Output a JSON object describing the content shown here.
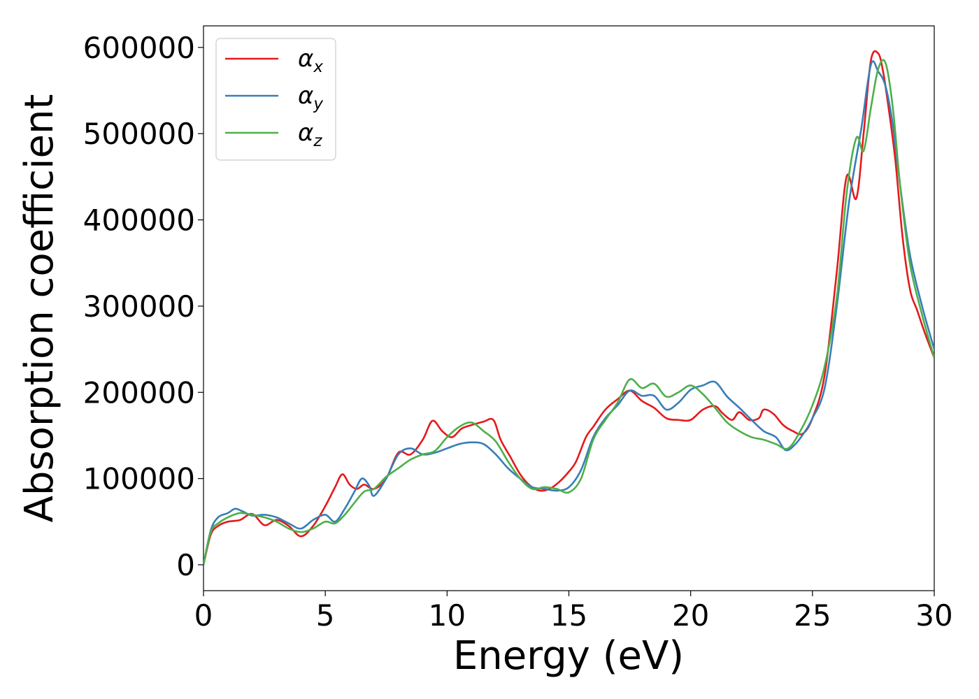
{
  "chart_data": {
    "type": "line",
    "xlabel": "Energy (eV)",
    "ylabel": "Absorption coefficient",
    "xlim": [
      0,
      30
    ],
    "ylim": [
      -30000,
      625000
    ],
    "xticks": [
      0,
      5,
      10,
      15,
      20,
      25,
      30
    ],
    "xtick_labels": [
      "0",
      "5",
      "10",
      "15",
      "20",
      "25",
      "30"
    ],
    "yticks": [
      0,
      100000,
      200000,
      300000,
      400000,
      500000,
      600000
    ],
    "ytick_labels": [
      "0",
      "100000",
      "200000",
      "300000",
      "400000",
      "500000",
      "600000"
    ],
    "grid": false,
    "legend_position": "top-left",
    "series": [
      {
        "name": "α",
        "subscript": "x",
        "color": "#e41a1c",
        "x": [
          0,
          0.3,
          0.6,
          1.0,
          1.5,
          2.0,
          2.5,
          3.0,
          3.5,
          4.0,
          4.5,
          5.0,
          5.4,
          5.7,
          6.0,
          6.3,
          6.6,
          7.0,
          7.5,
          8.0,
          8.5,
          9.0,
          9.4,
          9.8,
          10.2,
          10.6,
          11.0,
          11.5,
          11.9,
          12.2,
          12.6,
          13.0,
          13.4,
          13.8,
          14.2,
          14.6,
          15.0,
          15.3,
          15.7,
          16.0,
          16.5,
          17.0,
          17.5,
          18.0,
          18.5,
          19.0,
          19.5,
          20.0,
          20.5,
          21.0,
          21.3,
          21.7,
          22.0,
          22.4,
          22.8,
          23.0,
          23.4,
          23.8,
          24.2,
          24.6,
          25.0,
          25.5,
          26.0,
          26.4,
          26.8,
          27.1,
          27.4,
          27.7,
          27.9,
          28.1,
          28.4,
          28.7,
          29.0,
          29.3,
          29.6,
          30.0
        ],
        "values": [
          0,
          35000,
          45000,
          50000,
          52000,
          59000,
          46000,
          52000,
          45000,
          33000,
          45000,
          68000,
          90000,
          105000,
          93000,
          88000,
          93000,
          88000,
          100000,
          130000,
          128000,
          145000,
          167000,
          155000,
          148000,
          158000,
          162000,
          166000,
          168000,
          145000,
          125000,
          105000,
          92000,
          86000,
          88000,
          96000,
          108000,
          120000,
          148000,
          160000,
          180000,
          192000,
          202000,
          190000,
          182000,
          170000,
          168000,
          168000,
          180000,
          184000,
          176000,
          168000,
          177000,
          168000,
          170000,
          180000,
          175000,
          162000,
          155000,
          152000,
          170000,
          220000,
          340000,
          450000,
          425000,
          500000,
          585000,
          593000,
          572000,
          535000,
          470000,
          380000,
          320000,
          295000,
          270000,
          240000
        ]
      },
      {
        "name": "α",
        "subscript": "y",
        "color": "#377eb8",
        "x": [
          0,
          0.3,
          0.6,
          1.0,
          1.3,
          1.6,
          2.0,
          2.5,
          3.0,
          3.5,
          4.0,
          4.5,
          5.0,
          5.4,
          5.8,
          6.2,
          6.5,
          6.8,
          7.0,
          7.5,
          8.0,
          8.5,
          9.0,
          9.5,
          10.0,
          10.5,
          11.0,
          11.5,
          12.0,
          12.5,
          13.0,
          13.5,
          14.0,
          14.5,
          15.0,
          15.5,
          16.0,
          16.5,
          17.0,
          17.5,
          18.0,
          18.5,
          19.0,
          19.5,
          20.0,
          20.5,
          21.0,
          21.5,
          22.0,
          22.5,
          23.0,
          23.5,
          23.9,
          24.3,
          24.7,
          25.0,
          25.5,
          26.0,
          26.5,
          27.0,
          27.4,
          27.7,
          28.0,
          28.3,
          28.6,
          29.0,
          29.5,
          30.0
        ],
        "values": [
          0,
          40000,
          55000,
          60000,
          65000,
          62000,
          57000,
          58000,
          55000,
          48000,
          42000,
          52000,
          58000,
          50000,
          65000,
          85000,
          100000,
          92000,
          80000,
          100000,
          128000,
          135000,
          128000,
          130000,
          135000,
          140000,
          142000,
          140000,
          128000,
          112000,
          100000,
          90000,
          88000,
          86000,
          90000,
          110000,
          148000,
          170000,
          185000,
          202000,
          196000,
          196000,
          180000,
          188000,
          203000,
          208000,
          212000,
          195000,
          182000,
          168000,
          155000,
          148000,
          133000,
          140000,
          155000,
          170000,
          205000,
          300000,
          420000,
          505000,
          580000,
          572000,
          555000,
          510000,
          440000,
          360000,
          300000,
          250000
        ]
      },
      {
        "name": "α",
        "subscript": "z",
        "color": "#4daf4a",
        "x": [
          0,
          0.3,
          0.6,
          1.0,
          1.5,
          2.0,
          2.5,
          3.0,
          3.5,
          4.0,
          4.5,
          5.0,
          5.4,
          5.8,
          6.2,
          6.6,
          7.0,
          7.5,
          8.0,
          8.5,
          9.0,
          9.5,
          10.0,
          10.5,
          11.0,
          11.5,
          12.0,
          12.5,
          13.0,
          13.5,
          14.0,
          14.5,
          15.0,
          15.5,
          16.0,
          16.5,
          17.0,
          17.5,
          18.0,
          18.5,
          19.0,
          19.5,
          20.0,
          20.5,
          21.0,
          21.5,
          22.0,
          22.5,
          23.0,
          23.5,
          24.0,
          24.5,
          25.0,
          25.5,
          26.0,
          26.4,
          26.8,
          27.1,
          27.4,
          27.7,
          28.0,
          28.3,
          28.6,
          29.0,
          29.5,
          30.0
        ],
        "values": [
          0,
          38000,
          48000,
          55000,
          60000,
          58000,
          55000,
          50000,
          42000,
          38000,
          42000,
          50000,
          48000,
          58000,
          72000,
          85000,
          88000,
          102000,
          112000,
          122000,
          128000,
          132000,
          148000,
          160000,
          165000,
          155000,
          143000,
          120000,
          100000,
          88000,
          90000,
          88000,
          84000,
          100000,
          145000,
          168000,
          188000,
          215000,
          205000,
          210000,
          195000,
          200000,
          208000,
          198000,
          182000,
          165000,
          155000,
          148000,
          145000,
          140000,
          135000,
          155000,
          185000,
          230000,
          310000,
          430000,
          495000,
          480000,
          530000,
          575000,
          582000,
          530000,
          440000,
          350000,
          290000,
          240000
        ]
      }
    ]
  }
}
